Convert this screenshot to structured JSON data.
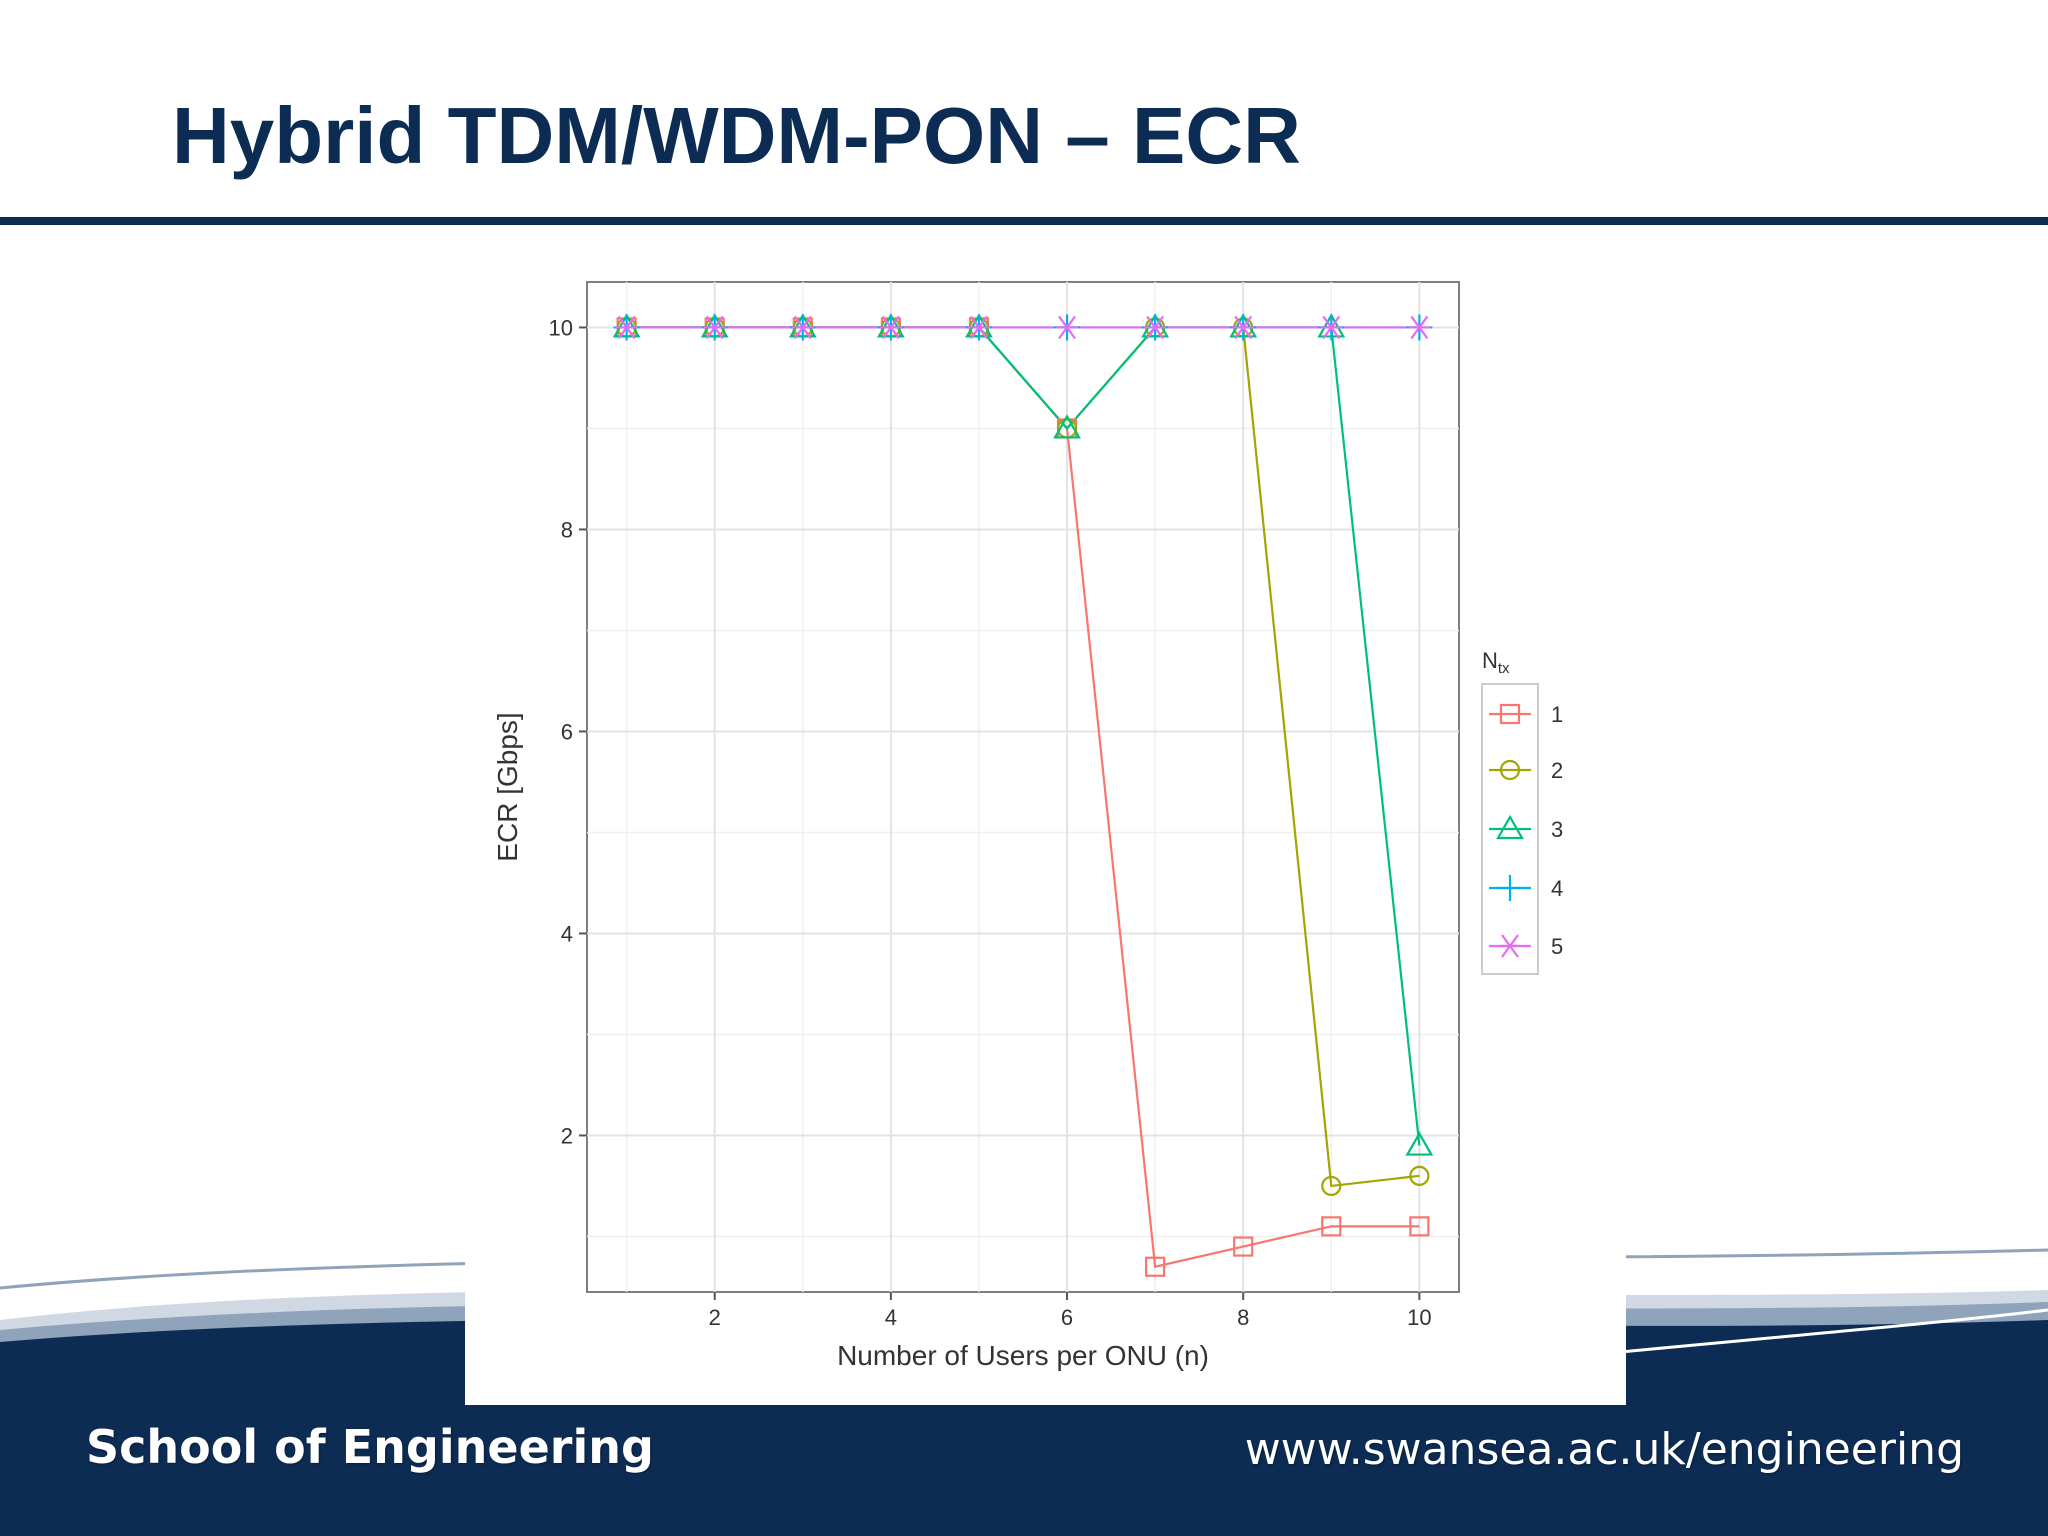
{
  "slide": {
    "title": "Hybrid TDM/WDM-PON – ECR"
  },
  "footer": {
    "school": "School of Engineering",
    "url": "www.swansea.ac.uk/engineering"
  },
  "colors": {
    "brand_navy": "#0d2c54",
    "series_1": "#F8766D",
    "series_2": "#A3A500",
    "series_3": "#00BF7D",
    "series_4": "#00B0F6",
    "series_5": "#E76BF3"
  },
  "chart_data": {
    "type": "line",
    "xlabel": "Number of Users per ONU (n)",
    "ylabel": "ECR [Gbps]",
    "xlim": [
      0.55,
      10.45
    ],
    "ylim": [
      0.45,
      10.45
    ],
    "x_ticks": [
      "2",
      "4",
      "6",
      "8",
      "10"
    ],
    "y_ticks": [
      "2",
      "4",
      "6",
      "8",
      "10"
    ],
    "grid": true,
    "legend_title": "N",
    "legend_title_subscript": "tx",
    "legend_position": "right",
    "x": [
      1,
      2,
      3,
      4,
      5,
      6,
      7,
      8,
      9,
      10
    ],
    "series": [
      {
        "name": "1",
        "marker": "square",
        "color": "#F8766D",
        "values": [
          10,
          10,
          10,
          10,
          10,
          9,
          0.7,
          0.9,
          1.1,
          1.1
        ]
      },
      {
        "name": "2",
        "marker": "circle",
        "color": "#A3A500",
        "values": [
          10,
          10,
          10,
          10,
          10,
          9,
          10,
          10,
          1.5,
          1.6
        ]
      },
      {
        "name": "3",
        "marker": "triangle",
        "color": "#00BF7D",
        "values": [
          10,
          10,
          10,
          10,
          10,
          9,
          10,
          10,
          10,
          1.9
        ]
      },
      {
        "name": "4",
        "marker": "plus",
        "color": "#00B0F6",
        "values": [
          10,
          10,
          10,
          10,
          10,
          10,
          10,
          10,
          10,
          10
        ]
      },
      {
        "name": "5",
        "marker": "asterisk",
        "color": "#E76BF3",
        "values": [
          10,
          10,
          10,
          10,
          10,
          10,
          10,
          10,
          10,
          10
        ]
      }
    ]
  }
}
